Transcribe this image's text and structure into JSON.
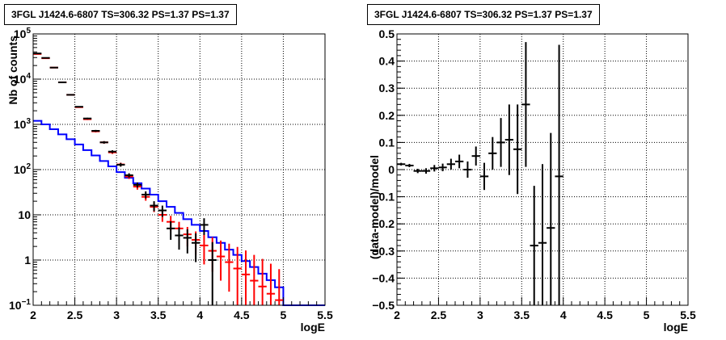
{
  "chart_data": [
    {
      "type": "step-histogram",
      "title": "3FGL J1424.6-6807 TS=306.32 PS=1.37 PS=1.37",
      "xlabel": "logE",
      "ylabel": "Nb of counts",
      "xlim": [
        2,
        5.5
      ],
      "ylim": [
        0.1,
        100000
      ],
      "yscale": "log",
      "grid": true,
      "xticks": [
        "2",
        "2.5",
        "3",
        "3.5",
        "4",
        "4.5",
        "5",
        "5.5"
      ],
      "yticks": [
        "10^-1",
        "1",
        "10",
        "10^2",
        "10^3",
        "10^4",
        "10^5"
      ],
      "bin_width": 0.1,
      "series": [
        {
          "color": "#0000ff",
          "style": "step",
          "x": [
            2.0,
            2.1,
            2.2,
            2.3,
            2.4,
            2.5,
            2.6,
            2.7,
            2.8,
            2.9,
            3.0,
            3.1,
            3.2,
            3.3,
            3.4,
            3.5,
            3.6,
            3.7,
            3.8,
            3.9,
            4.0,
            4.1,
            4.2,
            4.3,
            4.4,
            4.5,
            4.6,
            4.7,
            4.8,
            4.9,
            5.0,
            5.1,
            5.2,
            5.3,
            5.4
          ],
          "values": [
            1200,
            1000,
            780,
            600,
            470,
            360,
            270,
            205,
            155,
            118,
            88,
            66,
            50,
            38,
            28,
            20,
            15,
            11,
            8,
            6,
            4.4,
            3.2,
            2.4,
            1.7,
            1.3,
            0.95,
            0.7,
            0.5,
            0.36,
            0.25,
            0.1,
            0.1,
            0.1,
            0.1,
            0.1
          ]
        },
        {
          "color": "#ff0000",
          "style": "points-with-errors",
          "x": [
            2.05,
            2.15,
            2.25,
            2.35,
            2.45,
            2.55,
            2.65,
            2.75,
            2.85,
            2.95,
            3.05,
            3.15,
            3.25,
            3.35,
            3.45,
            3.55,
            3.65,
            3.75,
            3.85,
            3.95,
            4.05,
            4.15,
            4.25,
            4.35,
            4.45,
            4.55,
            4.65,
            4.75,
            4.85,
            4.95
          ],
          "values": [
            36000,
            29000,
            18000,
            8500,
            4500,
            2400,
            1300,
            700,
            400,
            240,
            130,
            70,
            42,
            25,
            15,
            10,
            7,
            5,
            3.7,
            2.8,
            2.1,
            1.6,
            1.2,
            0.9,
            0.65,
            0.48,
            0.35,
            0.26,
            0.18,
            0.13
          ],
          "err_low": [
            400,
            350,
            250,
            150,
            100,
            70,
            50,
            35,
            25,
            18,
            12,
            8,
            6,
            4.5,
            3.5,
            3,
            2.5,
            2,
            1.7,
            1.5,
            1.3,
            1.05,
            0.85,
            0.7,
            0.55,
            0.42,
            0.32,
            0.24,
            0.17,
            0.12
          ],
          "err_high": [
            400,
            350,
            250,
            150,
            100,
            70,
            50,
            35,
            25,
            18,
            12,
            8,
            6,
            4.5,
            3.5,
            3,
            2.5,
            2,
            1.7,
            1.5,
            1.7,
            1.6,
            1.5,
            1.4,
            1.3,
            1.15,
            0.95,
            0.8,
            0.65,
            0.5
          ]
        },
        {
          "color": "#000000",
          "style": "points-with-errors",
          "x": [
            2.05,
            2.15,
            2.25,
            2.35,
            2.45,
            2.55,
            2.65,
            2.75,
            2.85,
            2.95,
            3.05,
            3.15,
            3.25,
            3.35,
            3.45,
            3.55,
            3.65,
            3.75,
            3.85,
            3.95,
            4.05,
            4.15
          ],
          "values": [
            37000,
            29500,
            18000,
            8500,
            4500,
            2450,
            1350,
            720,
            400,
            250,
            128,
            75,
            46,
            28,
            16,
            12.5,
            5,
            3.5,
            3.1,
            2.4,
            6,
            1
          ],
          "err_low": [
            400,
            350,
            250,
            150,
            100,
            70,
            50,
            35,
            25,
            18,
            12,
            8,
            6,
            5,
            4,
            3.5,
            2.2,
            1.8,
            1.7,
            1.5,
            2.4,
            0.95
          ],
          "err_high": [
            400,
            350,
            250,
            150,
            100,
            70,
            50,
            35,
            25,
            18,
            12,
            8,
            6,
            5,
            4,
            3.5,
            2.2,
            1.8,
            1.7,
            1.5,
            2.4,
            1.5
          ]
        }
      ]
    },
    {
      "type": "scatter-with-errors",
      "title": "3FGL J1424.6-6807 TS=306.32 PS=1.37 PS=1.37",
      "xlabel": "logE",
      "ylabel": "(data-model)/model",
      "xlim": [
        2,
        5.5
      ],
      "ylim": [
        -0.5,
        0.5
      ],
      "grid": true,
      "xticks": [
        "2",
        "2.5",
        "3",
        "3.5",
        "4",
        "4.5",
        "5",
        "5.5"
      ],
      "yticks": [
        "-0.5",
        "-0.4",
        "-0.3",
        "-0.2",
        "-0.1",
        "0",
        "0.1",
        "0.2",
        "0.3",
        "0.4",
        "0.5"
      ],
      "bin_width": 0.1,
      "series": [
        {
          "color": "#000000",
          "x": [
            2.05,
            2.15,
            2.25,
            2.35,
            2.45,
            2.55,
            2.65,
            2.75,
            2.85,
            2.95,
            3.05,
            3.15,
            3.25,
            3.35,
            3.45,
            3.55,
            3.65,
            3.75,
            3.85,
            3.95
          ],
          "y": [
            0.02,
            0.015,
            -0.005,
            -0.005,
            0.005,
            0.008,
            0.02,
            0.03,
            0.0,
            0.05,
            -0.025,
            0.06,
            0.1,
            0.11,
            0.075,
            0.24,
            -0.28,
            -0.27,
            -0.215,
            -0.025
          ],
          "err": [
            0.005,
            0.006,
            0.008,
            0.01,
            0.012,
            0.014,
            0.02,
            0.025,
            0.03,
            0.035,
            0.05,
            0.06,
            0.09,
            0.13,
            0.165,
            0.23,
            0.22,
            0.29,
            0.35,
            0.485
          ]
        }
      ]
    }
  ]
}
